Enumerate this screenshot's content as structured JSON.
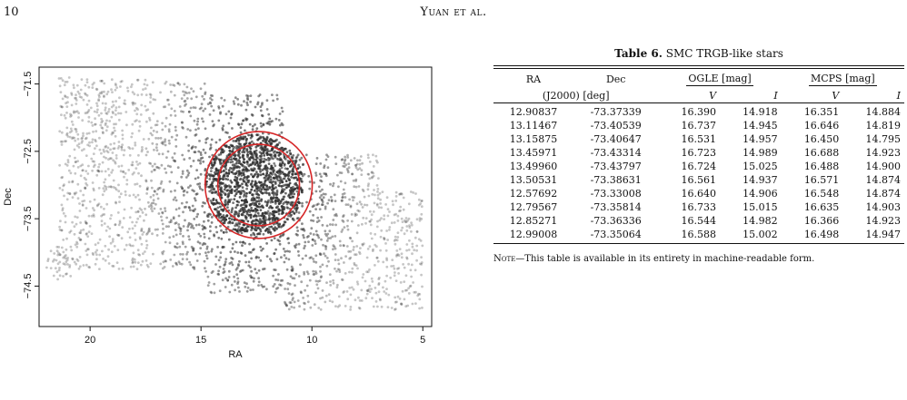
{
  "header": {
    "page_number": "10",
    "running_head": "Yuan et al."
  },
  "figure": {
    "axis_color": "#111111",
    "point_color": "#333333",
    "circle_color": "#d62728",
    "chart_data": {
      "type": "scatter",
      "title": "",
      "xlabel": "RA",
      "ylabel": "Dec",
      "x_inverted": true,
      "xlim": [
        22.3,
        4.6
      ],
      "ylim": [
        -75.1,
        -71.25
      ],
      "xticks": [
        20,
        15,
        10,
        5
      ],
      "yticks": [
        -71.5,
        -72.5,
        -73.5,
        -74.5
      ],
      "xtick_labels": [
        "20",
        "15",
        "10",
        "5"
      ],
      "ytick_labels": [
        "−71.5",
        "−72.5",
        "−73.5",
        "−74.5"
      ],
      "grid": false,
      "circles": [
        {
          "center_ra": 12.4,
          "center_dec": -73.0,
          "radius_deg": 2.1
        },
        {
          "center_ra": 12.4,
          "center_dec": -73.0,
          "radius_deg": 1.6
        }
      ],
      "density_regions": [
        {
          "ra_range": [
            21.4,
            14.8
          ],
          "dec_range": [
            -74.25,
            -71.4
          ]
        },
        {
          "ra_range": [
            14.8,
            11.3
          ],
          "dec_range": [
            -74.6,
            -71.65
          ]
        },
        {
          "ra_range": [
            11.3,
            7.0
          ],
          "dec_range": [
            -74.85,
            -72.55
          ]
        },
        {
          "ra_range": [
            7.0,
            5.0
          ],
          "dec_range": [
            -74.85,
            -73.1
          ]
        },
        {
          "ra_range": [
            22.0,
            20.8
          ],
          "dec_range": [
            -74.4,
            -73.9
          ]
        }
      ],
      "core": {
        "center_ra": 12.6,
        "center_dec": -73.0
      }
    }
  },
  "table": {
    "caption_label": "Table 6.",
    "caption_text": "SMC TRGB-like stars",
    "columns": {
      "ra": "RA",
      "dec": "Dec",
      "ogle": "OGLE [mag]",
      "mcps": "MCPS [mag]",
      "epoch": "(J2000)",
      "unit": "[deg]",
      "v": "V",
      "i": "I"
    },
    "rows": [
      [
        "12.90837",
        "-73.37339",
        "16.390",
        "14.918",
        "16.351",
        "14.884"
      ],
      [
        "13.11467",
        "-73.40539",
        "16.737",
        "14.945",
        "16.646",
        "14.819"
      ],
      [
        "13.15875",
        "-73.40647",
        "16.531",
        "14.957",
        "16.450",
        "14.795"
      ],
      [
        "13.45971",
        "-73.43314",
        "16.723",
        "14.989",
        "16.688",
        "14.923"
      ],
      [
        "13.49960",
        "-73.43797",
        "16.724",
        "15.025",
        "16.488",
        "14.900"
      ],
      [
        "13.50531",
        "-73.38631",
        "16.561",
        "14.937",
        "16.571",
        "14.874"
      ],
      [
        "12.57692",
        "-73.33008",
        "16.640",
        "14.906",
        "16.548",
        "14.874"
      ],
      [
        "12.79567",
        "-73.35814",
        "16.733",
        "15.015",
        "16.635",
        "14.903"
      ],
      [
        "12.85271",
        "-73.36336",
        "16.544",
        "14.982",
        "16.366",
        "14.923"
      ],
      [
        "12.99008",
        "-73.35064",
        "16.588",
        "15.002",
        "16.498",
        "14.947"
      ]
    ],
    "note_label": "Note",
    "note_text": "—This table is available in its entirety in machine-readable form."
  }
}
